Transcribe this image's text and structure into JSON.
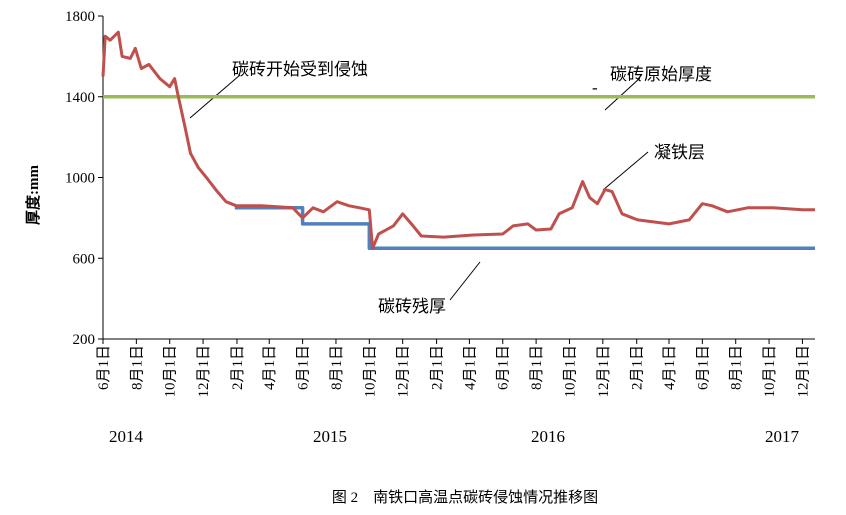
{
  "chart_data": {
    "type": "line",
    "caption": "图 2　南铁口高温点碳砖侵蚀情况推移图",
    "y_label": "厚度:mm",
    "ylim": [
      200,
      1800
    ],
    "yticks": [
      200,
      600,
      1000,
      1400,
      1800
    ],
    "xlim": [
      "2014-06-01",
      "2017-12-24"
    ],
    "xticks": [
      {
        "value": "2014-06-01",
        "label": "6月1日"
      },
      {
        "value": "2014-08-01",
        "label": "8月1日"
      },
      {
        "value": "2014-10-01",
        "label": "10月1日"
      },
      {
        "value": "2014-12-01",
        "label": "12月1日"
      },
      {
        "value": "2015-02-01",
        "label": "2月1日"
      },
      {
        "value": "2015-04-01",
        "label": "4月1日"
      },
      {
        "value": "2015-06-01",
        "label": "6月1日"
      },
      {
        "value": "2015-08-01",
        "label": "8月1日"
      },
      {
        "value": "2015-10-01",
        "label": "10月1日"
      },
      {
        "value": "2015-12-01",
        "label": "12月1日"
      },
      {
        "value": "2016-02-01",
        "label": "2月1日"
      },
      {
        "value": "2016-04-01",
        "label": "4月1日"
      },
      {
        "value": "2016-06-01",
        "label": "6月1日"
      },
      {
        "value": "2016-08-01",
        "label": "8月1日"
      },
      {
        "value": "2016-10-01",
        "label": "10月1日"
      },
      {
        "value": "2016-12-01",
        "label": "12月1日"
      },
      {
        "value": "2017-02-01",
        "label": "2月1日"
      },
      {
        "value": "2017-04-01",
        "label": "4月1日"
      },
      {
        "value": "2017-06-01",
        "label": "6月1日"
      },
      {
        "value": "2017-08-01",
        "label": "8月1日"
      },
      {
        "value": "2017-10-01",
        "label": "10月1日"
      },
      {
        "value": "2017-12-01",
        "label": "12月1日"
      }
    ],
    "years": [
      "2014",
      "2015",
      "2016",
      "2017"
    ],
    "annotations": [
      "碳砖开始受到侵蚀",
      "-",
      "碳砖原始厚度",
      "凝铁层",
      "碳砖残厚"
    ],
    "series": [
      {
        "color": "#9bbb59",
        "x": [
          "2014-06-01",
          "2017-12-24"
        ],
        "values": [
          1400,
          1400
        ]
      },
      {
        "color": "#4f81bd",
        "x": [
          "2015-01-28",
          "2015-06-01",
          "2015-06-01",
          "2015-10-01",
          "2015-10-01",
          "2017-12-24"
        ],
        "values": [
          850,
          850,
          770,
          770,
          650,
          650
        ]
      },
      {
        "color": "#c0504d",
        "x": [
          "2014-06-01",
          "2014-06-05",
          "2014-06-14",
          "2014-06-29",
          "2014-07-06",
          "2014-07-21",
          "2014-07-30",
          "2014-08-10",
          "2014-08-24",
          "2014-09-13",
          "2014-10-01",
          "2014-10-10",
          "2014-10-16",
          "2014-10-29",
          "2014-11-08",
          "2014-11-22",
          "2014-12-07",
          "2014-12-24",
          "2015-01-12",
          "2015-01-31",
          "2015-03-18",
          "2015-05-14",
          "2015-06-01",
          "2015-06-20",
          "2015-07-09",
          "2015-08-03",
          "2015-08-25",
          "2015-09-13",
          "2015-10-01",
          "2015-10-07",
          "2015-10-18",
          "2015-11-14",
          "2015-12-01",
          "2015-12-20",
          "2016-01-04",
          "2016-02-14",
          "2016-04-08",
          "2016-06-01",
          "2016-06-20",
          "2016-07-17",
          "2016-08-01",
          "2016-08-28",
          "2016-09-12",
          "2016-10-06",
          "2016-10-25",
          "2016-11-07",
          "2016-11-21",
          "2016-12-05",
          "2016-12-18",
          "2017-01-05",
          "2017-02-03",
          "2017-04-01",
          "2017-05-08",
          "2017-06-01",
          "2017-06-19",
          "2017-07-17",
          "2017-08-23",
          "2017-10-08",
          "2017-12-01",
          "2017-12-24"
        ],
        "values": [
          1500,
          1700,
          1680,
          1720,
          1600,
          1590,
          1640,
          1540,
          1560,
          1490,
          1450,
          1490,
          1410,
          1250,
          1120,
          1050,
          1000,
          940,
          880,
          860,
          860,
          850,
          800,
          850,
          830,
          880,
          860,
          850,
          840,
          650,
          720,
          760,
          820,
          760,
          710,
          705,
          715,
          720,
          760,
          770,
          740,
          745,
          820,
          850,
          980,
          900,
          870,
          940,
          930,
          820,
          790,
          770,
          790,
          870,
          860,
          830,
          850,
          850,
          840,
          840
        ]
      }
    ]
  }
}
